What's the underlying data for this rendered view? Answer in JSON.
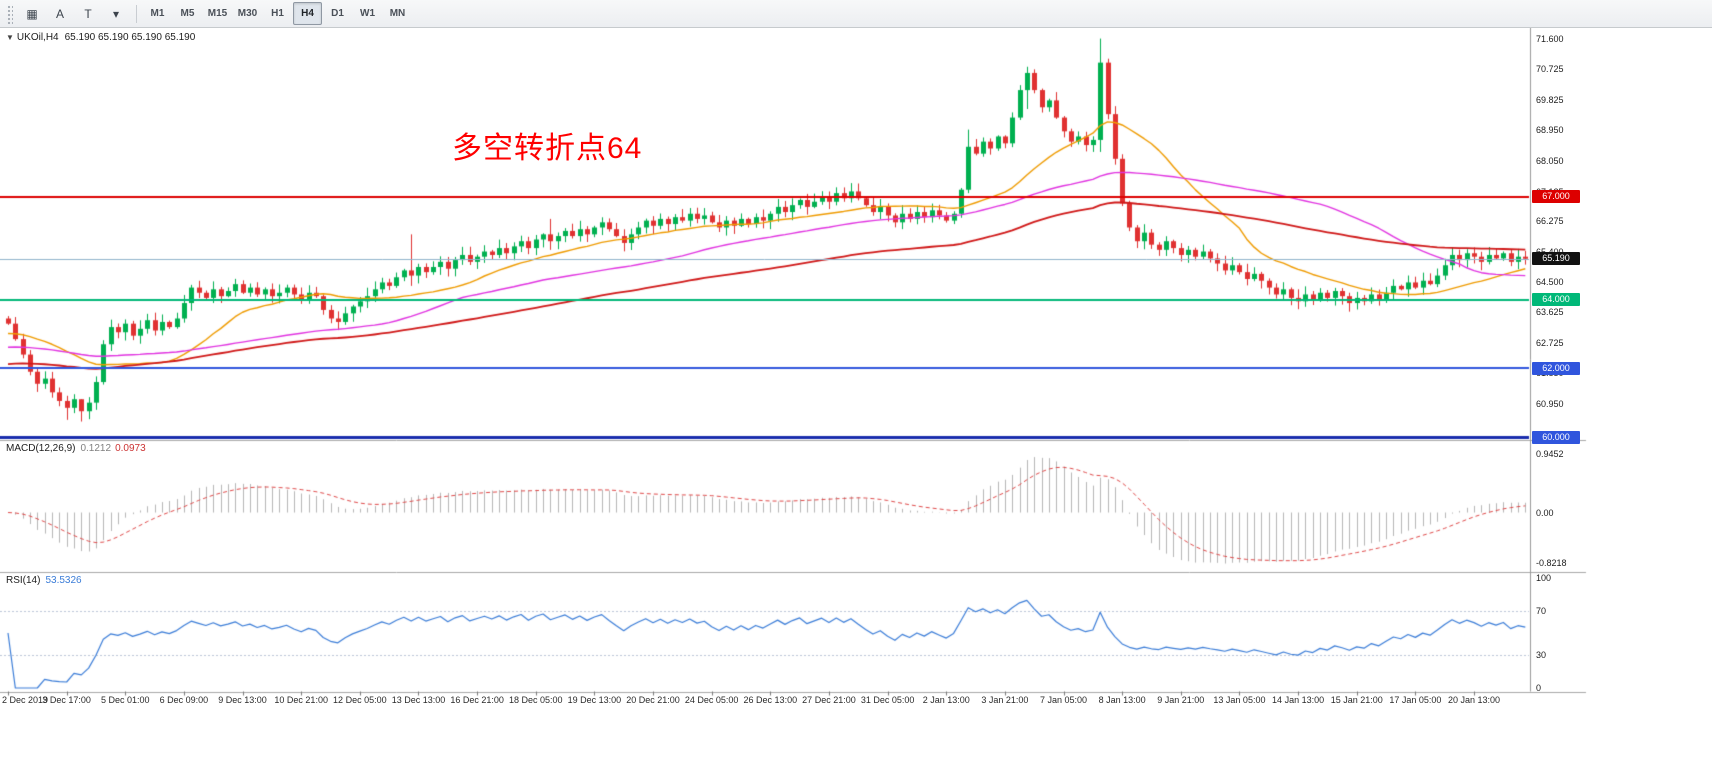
{
  "toolbar": {
    "left_buttons": [
      {
        "id": "tile-windows",
        "glyph": "▦"
      },
      {
        "id": "letter-a",
        "glyph": "A"
      },
      {
        "id": "letter-t",
        "glyph": "T"
      },
      {
        "id": "dropdown-caret",
        "glyph": "▾"
      }
    ],
    "timeframes": [
      {
        "label": "M1",
        "active": false
      },
      {
        "label": "M5",
        "active": false
      },
      {
        "label": "M15",
        "active": false
      },
      {
        "label": "M30",
        "active": false
      },
      {
        "label": "H1",
        "active": false
      },
      {
        "label": "H4",
        "active": true
      },
      {
        "label": "D1",
        "active": false
      },
      {
        "label": "W1",
        "active": false
      },
      {
        "label": "MN",
        "active": false
      }
    ]
  },
  "chart": {
    "collapse_caret": "▼",
    "symbol_label": "UKOil,H4",
    "ohlc_text": "65.190 65.190 65.190 65.190",
    "annotation": {
      "text": "多空转折点64",
      "color": "#ff0000"
    },
    "y_ticks": [
      "71.600",
      "70.725",
      "69.825",
      "68.950",
      "68.050",
      "67.125",
      "66.275",
      "65.400",
      "64.500",
      "63.625",
      "62.725",
      "61.850",
      "60.950"
    ],
    "levels": [
      {
        "label": "67.000",
        "price": 67.0,
        "line_color": "#dd0000",
        "badge_color": "#dd0000",
        "width": 2,
        "current": false
      },
      {
        "label": "65.190",
        "price": 65.19,
        "line_color": "#8fb3cc",
        "badge_color": "#111111",
        "width": 1,
        "current": true
      },
      {
        "label": "64.000",
        "price": 64.0,
        "line_color": "#00b878",
        "badge_color": "#00b878",
        "width": 2,
        "current": false
      },
      {
        "label": "62.000",
        "price": 62.0,
        "line_color": "#3055dd",
        "badge_color": "#3055dd",
        "width": 2,
        "current": false
      },
      {
        "label": "60.000",
        "price": 60.0,
        "line_color": "#1a2dad",
        "badge_color": "#3055dd",
        "width": 3,
        "current": false
      }
    ]
  },
  "macd": {
    "label": "MACD(12,26,9)",
    "value_main": "0.1212",
    "value_signal": "0.0973",
    "y_ticks": [
      "0.9452",
      "0.00",
      "-0.8218"
    ],
    "tick_values": [
      0.9452,
      0,
      -0.8218
    ]
  },
  "rsi": {
    "label": "RSI(14)",
    "value": "53.5326",
    "y_ticks": [
      "100",
      "70",
      "30",
      "0"
    ],
    "tick_values": [
      100,
      70,
      30,
      0
    ],
    "levels": [
      70,
      30
    ]
  },
  "chart_data": {
    "type": "candlestick",
    "symbol": "UKOil",
    "timeframe": "H4",
    "title": "UKOil,H4",
    "y_range": [
      60.0,
      71.85
    ],
    "label_every": 8,
    "x_labels": [
      "2 Dec 2019",
      "3 Dec 17:00",
      "5 Dec 01:00",
      "6 Dec 09:00",
      "9 Dec 13:00",
      "10 Dec 21:00",
      "12 Dec 05:00",
      "13 Dec 13:00",
      "16 Dec 21:00",
      "18 Dec 05:00",
      "19 Dec 13:00",
      "20 Dec 21:00",
      "24 Dec 05:00",
      "26 Dec 13:00",
      "27 Dec 21:00",
      "31 Dec 05:00",
      "2 Jan 13:00",
      "3 Jan 21:00",
      "7 Jan 05:00",
      "8 Jan 13:00",
      "9 Jan 21:00",
      "13 Jan 05:00",
      "14 Jan 13:00",
      "15 Jan 21:00",
      "17 Jan 05:00",
      "20 Jan 13:00"
    ],
    "closes": [
      63.3,
      62.85,
      62.4,
      61.9,
      61.55,
      61.7,
      61.3,
      61.05,
      60.85,
      61.1,
      60.75,
      61.0,
      61.6,
      62.7,
      63.2,
      63.05,
      63.3,
      62.95,
      63.15,
      63.4,
      63.1,
      63.35,
      63.2,
      63.45,
      63.9,
      64.35,
      64.2,
      64.05,
      64.3,
      64.1,
      64.25,
      64.45,
      64.2,
      64.35,
      64.15,
      64.3,
      64.1,
      64.2,
      64.35,
      64.15,
      64.0,
      64.2,
      64.1,
      63.7,
      63.45,
      63.35,
      63.6,
      63.8,
      63.95,
      64.1,
      64.3,
      64.5,
      64.4,
      64.65,
      64.85,
      64.7,
      64.95,
      64.8,
      64.95,
      65.1,
      64.9,
      65.15,
      65.3,
      65.1,
      65.25,
      65.4,
      65.3,
      65.5,
      65.35,
      65.55,
      65.7,
      65.5,
      65.75,
      65.9,
      65.7,
      65.85,
      66.0,
      65.85,
      66.05,
      65.9,
      66.1,
      66.25,
      66.05,
      65.85,
      65.65,
      65.9,
      66.1,
      66.3,
      66.15,
      66.35,
      66.2,
      66.4,
      66.3,
      66.5,
      66.35,
      66.45,
      66.25,
      66.1,
      66.3,
      66.15,
      66.35,
      66.2,
      66.4,
      66.3,
      66.5,
      66.7,
      66.55,
      66.75,
      66.9,
      66.7,
      66.85,
      67.0,
      66.85,
      67.1,
      66.95,
      67.15,
      66.95,
      66.75,
      66.55,
      66.7,
      66.45,
      66.25,
      66.5,
      66.35,
      66.55,
      66.4,
      66.6,
      66.45,
      66.3,
      66.5,
      67.2,
      68.45,
      68.25,
      68.6,
      68.4,
      68.75,
      68.55,
      69.3,
      70.1,
      70.6,
      70.1,
      69.6,
      69.8,
      69.3,
      68.9,
      68.6,
      68.75,
      68.5,
      68.65,
      70.9,
      69.4,
      68.1,
      66.8,
      66.1,
      65.7,
      65.95,
      65.6,
      65.45,
      65.7,
      65.5,
      65.3,
      65.45,
      65.25,
      65.4,
      65.2,
      65.05,
      64.85,
      65.0,
      64.8,
      64.6,
      64.75,
      64.55,
      64.35,
      64.15,
      64.3,
      64.05,
      63.95,
      64.15,
      64.0,
      64.2,
      64.05,
      64.25,
      64.1,
      63.9,
      64.05,
      63.95,
      64.15,
      64.0,
      64.2,
      64.4,
      64.3,
      64.5,
      64.35,
      64.55,
      64.45,
      64.7,
      65.0,
      65.3,
      65.15,
      65.35,
      65.25,
      65.1,
      65.3,
      65.2,
      65.35,
      65.1,
      65.25,
      65.19
    ],
    "wick_overrides": {
      "8": [
        61.2,
        60.5
      ],
      "10": [
        61.1,
        60.45
      ],
      "55": [
        65.9,
        64.4
      ],
      "74": [
        66.35,
        65.45
      ],
      "131": [
        68.95,
        67.1
      ],
      "139": [
        70.78,
        69.55
      ],
      "149": [
        71.6,
        68.3
      ],
      "176": [
        64.3,
        63.72
      ],
      "183": [
        64.2,
        63.65
      ]
    },
    "up_color": "#00b050",
    "down_color": "#e03131",
    "moving_averages": [
      {
        "period": 20,
        "method": "sma",
        "color": "#ef9b00"
      },
      {
        "period": 50,
        "method": "sma",
        "color": "#e133e1"
      },
      {
        "period": 100,
        "method": "ema",
        "color": "#d01818"
      }
    ],
    "macd_params": {
      "fast": 12,
      "slow": 26,
      "signal": 9,
      "histogram_color": "#b6b6b6",
      "signal_color": "#e04848"
    },
    "rsi_params": {
      "period": 14,
      "color": "#3b7dd8",
      "level_color": "#bcc6d8"
    },
    "horizontal_levels": [
      67.0,
      65.19,
      64.0,
      62.0,
      60.0
    ]
  }
}
